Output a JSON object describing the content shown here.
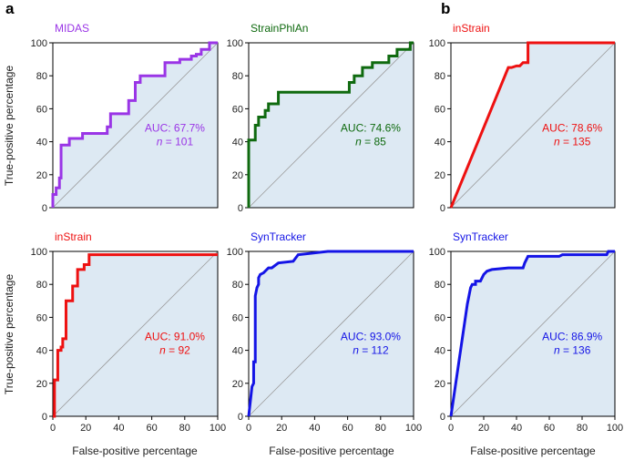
{
  "labels": {
    "ylabel": "True-positive percentage",
    "xlabel": "False-positive percentage",
    "panel_a": "a",
    "panel_b": "b"
  },
  "colors": {
    "purple": "#9a35e6",
    "green": "#0f6a0f",
    "red": "#ee1111",
    "blue": "#1414e6",
    "fill": "#dde9f3",
    "diag": "#9a9a9a"
  },
  "chart_data": [
    {
      "type": "line",
      "panel": "a",
      "row": 0,
      "col": 0,
      "title": "MIDAS",
      "color": "#9a35e6",
      "auc": "AUC: 67.7%",
      "n": "n",
      "n_value": " = 101",
      "xlim": [
        0,
        100
      ],
      "ylim": [
        0,
        100
      ],
      "x": [
        0,
        0,
        2,
        2,
        4,
        4,
        5,
        5,
        10,
        10,
        18,
        18,
        33,
        33,
        35,
        35,
        46,
        46,
        50,
        50,
        53,
        53,
        68,
        68,
        77,
        77,
        84,
        84,
        87,
        87,
        90,
        90,
        95,
        95,
        100
      ],
      "y": [
        0,
        8,
        8,
        12,
        12,
        18,
        18,
        38,
        38,
        42,
        42,
        45,
        45,
        49,
        49,
        57,
        57,
        65,
        65,
        76,
        76,
        80,
        80,
        88,
        88,
        90,
        90,
        92,
        92,
        93,
        93,
        96,
        96,
        100,
        100
      ]
    },
    {
      "type": "line",
      "panel": "a",
      "row": 0,
      "col": 1,
      "title": "StrainPhlAn",
      "color": "#0f6a0f",
      "auc": "AUC: 74.6%",
      "n": "n",
      "n_value": " = 85",
      "xlim": [
        0,
        100
      ],
      "ylim": [
        0,
        100
      ],
      "x": [
        0,
        0,
        4,
        4,
        6,
        6,
        10,
        10,
        12,
        12,
        18,
        18,
        61,
        61,
        64,
        64,
        69,
        69,
        75,
        75,
        85,
        85,
        90,
        90,
        98,
        98,
        100
      ],
      "y": [
        0,
        41,
        41,
        50,
        50,
        55,
        55,
        59,
        59,
        63,
        63,
        70,
        70,
        76,
        76,
        80,
        80,
        85,
        85,
        88,
        88,
        92,
        92,
        96,
        96,
        100,
        100
      ]
    },
    {
      "type": "line",
      "panel": "b",
      "row": 0,
      "col": 2,
      "title": "inStrain",
      "color": "#ee1111",
      "auc": "AUC: 78.6%",
      "n": "n",
      "n_value": " = 135",
      "xlim": [
        0,
        100
      ],
      "ylim": [
        0,
        100
      ],
      "x": [
        0,
        35,
        37,
        40,
        42,
        44,
        47,
        47,
        100
      ],
      "y": [
        0,
        85,
        85,
        86,
        86,
        88,
        88,
        100,
        100
      ]
    },
    {
      "type": "line",
      "panel": "a",
      "row": 1,
      "col": 0,
      "title": "inStrain",
      "color": "#ee1111",
      "auc": "AUC: 91.0%",
      "n": "n",
      "n_value": " = 92",
      "xlim": [
        0,
        100
      ],
      "ylim": [
        0,
        100
      ],
      "x": [
        0,
        1,
        1,
        3,
        3,
        5,
        5,
        6,
        6,
        8,
        8,
        12,
        12,
        15,
        15,
        19,
        19,
        22,
        22,
        100
      ],
      "y": [
        0,
        0,
        22,
        22,
        40,
        40,
        42,
        42,
        47,
        47,
        70,
        70,
        79,
        79,
        89,
        89,
        92,
        92,
        98,
        98
      ]
    },
    {
      "type": "line",
      "panel": "a",
      "row": 1,
      "col": 1,
      "title": "SynTracker",
      "color": "#1414e6",
      "auc": "AUC: 93.0%",
      "n": "n",
      "n_value": " = 112",
      "xlim": [
        0,
        100
      ],
      "ylim": [
        0,
        100
      ],
      "x": [
        0,
        2,
        3,
        3,
        4,
        4,
        5,
        6,
        6,
        7,
        9,
        10,
        12,
        14,
        18,
        27,
        30,
        48,
        100
      ],
      "y": [
        0,
        18,
        20,
        33,
        33,
        73,
        78,
        80,
        84,
        86,
        87,
        88,
        90,
        90,
        93,
        94,
        98,
        100,
        100
      ]
    },
    {
      "type": "line",
      "panel": "b",
      "row": 1,
      "col": 2,
      "title": "SynTracker",
      "color": "#1414e6",
      "auc": "AUC: 86.9%",
      "n": "n",
      "n_value": " = 136",
      "xlim": [
        0,
        100
      ],
      "ylim": [
        0,
        100
      ],
      "x": [
        0,
        10,
        12,
        13,
        15,
        15,
        18,
        20,
        22,
        25,
        35,
        44,
        45,
        46,
        47,
        66,
        68,
        95,
        96,
        100
      ],
      "y": [
        0,
        68,
        78,
        80,
        80,
        82,
        82,
        86,
        88,
        89,
        90,
        90,
        93,
        95,
        97,
        97,
        98,
        98,
        100,
        100
      ]
    }
  ]
}
